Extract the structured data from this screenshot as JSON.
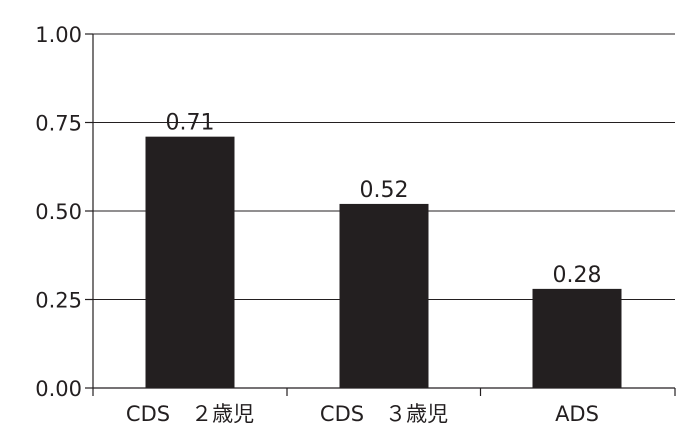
{
  "chart_data": {
    "type": "bar",
    "categories": [
      "CDS　２歳児",
      "CDS　３歳児",
      "ADS"
    ],
    "values": [
      0.71,
      0.52,
      0.28
    ],
    "data_labels": [
      "0.71",
      "0.52",
      "0.28"
    ],
    "title": "",
    "xlabel": "",
    "ylabel": "",
    "ylim": [
      0,
      1
    ],
    "yticks": [
      0,
      0.25,
      0.5,
      0.75,
      1
    ],
    "ytick_labels": [
      "0.00",
      "0.25",
      "0.50",
      "0.75",
      "1.00"
    ],
    "grid": true,
    "legend": "none",
    "colors": {
      "bar": "#231f20",
      "axis": "#231f20",
      "grid": "#231f20",
      "text": "#231f20"
    }
  }
}
